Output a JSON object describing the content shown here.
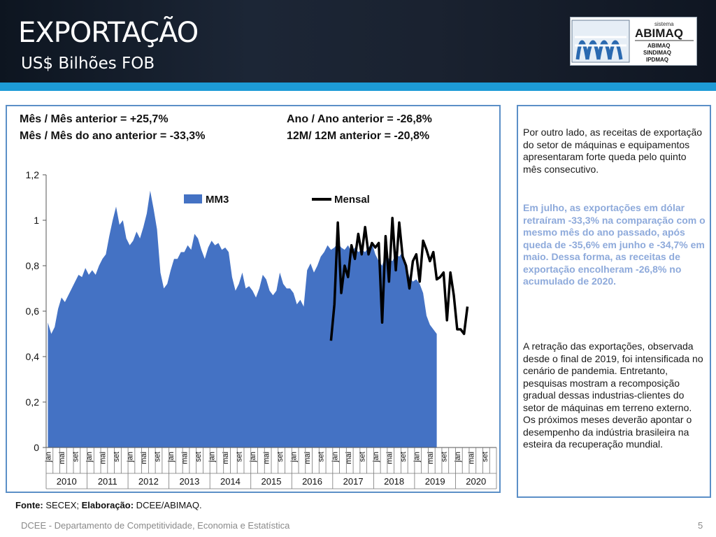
{
  "header": {
    "title": "EXPORTAÇÃO",
    "subtitle": "US$ Bilhões FOB"
  },
  "logo": {
    "top_text": "sistema",
    "brand": "ABIMAQ",
    "lines": [
      "ABIMAQ",
      "SINDIMAQ",
      "IPDMAQ"
    ]
  },
  "stats": {
    "mom": "Mês / Mês anterior = +25,7%",
    "yoy_month": "Mês / Mês do ano anterior = -33,3%",
    "ytd": "Ano / Ano anterior = -26,8%",
    "r12": "12M/ 12M anterior = -20,8%"
  },
  "text_panel": {
    "p1": "Por outro lado, as receitas de exportação do setor de máquinas e equipamentos apresentaram forte queda pelo quinto mês consecutivo.",
    "p2": "Em julho, as exportações em dólar retraíram -33,3% na comparação com o mesmo mês do ano passado, após queda de  -35,6% em junho e -34,7% em maio. Dessa forma, as receitas de exportação encolheram -26,8% no acumulado de 2020.",
    "p3": "A retração das exportações, observada desde o final de 2019, foi intensificada no cenário de pandemia. Entretanto, pesquisas mostram a recomposição gradual dessas industrias-clientes do setor de máquinas em terreno externo. Os próximos meses deverão apontar o desempenho da indústria brasileira na esteira da recuperação mundial."
  },
  "fonte": "Fonte: SECEX; Elaboração: DCEE/ABIMAQ.",
  "footer": "DCEE - Departamento de Competitividade, Economia e Estatística",
  "page_number": "5",
  "colors": {
    "area": "#4472c4",
    "line": "#000000",
    "accent": "#1d9bd6",
    "panel_border": "#5b8fc7",
    "highlight_text": "#8eaadb"
  },
  "chart_data": {
    "type": "area",
    "ylim": [
      0,
      1.2
    ],
    "yticks": [
      "0",
      "0,2",
      "0,4",
      "0,6",
      "0,8",
      "1",
      "1,2"
    ],
    "month_labels": [
      "jan",
      "mai",
      "set"
    ],
    "years": [
      "2010",
      "2011",
      "2012",
      "2013",
      "2014",
      "2015",
      "2016",
      "2017",
      "2018",
      "2019",
      "2020"
    ],
    "series": [
      {
        "name": "MM3",
        "type": "area",
        "start": "2010-01",
        "values": [
          0.55,
          0.5,
          0.53,
          0.61,
          0.66,
          0.64,
          0.67,
          0.7,
          0.73,
          0.76,
          0.75,
          0.79,
          0.76,
          0.78,
          0.76,
          0.8,
          0.83,
          0.85,
          0.93,
          1.0,
          1.06,
          0.98,
          1.0,
          0.92,
          0.89,
          0.91,
          0.95,
          0.92,
          0.97,
          1.03,
          1.13,
          1.05,
          0.96,
          0.77,
          0.7,
          0.72,
          0.78,
          0.83,
          0.83,
          0.86,
          0.86,
          0.89,
          0.87,
          0.94,
          0.92,
          0.87,
          0.83,
          0.88,
          0.91,
          0.89,
          0.9,
          0.87,
          0.88,
          0.86,
          0.75,
          0.69,
          0.72,
          0.77,
          0.7,
          0.71,
          0.69,
          0.66,
          0.7,
          0.76,
          0.74,
          0.69,
          0.67,
          0.69,
          0.77,
          0.72,
          0.7,
          0.7,
          0.68,
          0.63,
          0.65,
          0.62,
          0.78,
          0.81,
          0.77,
          0.8,
          0.84,
          0.86,
          0.89,
          0.87,
          0.88,
          0.9,
          0.88,
          0.87,
          0.89,
          0.86,
          0.88,
          0.86,
          0.87,
          0.86,
          0.88,
          0.9,
          0.85,
          0.82,
          0.8,
          0.85,
          0.83,
          0.82,
          0.85,
          0.84,
          0.86,
          0.8,
          0.75,
          0.73,
          0.74,
          0.72,
          0.68,
          0.58,
          0.54,
          0.52,
          0.5
        ]
      },
      {
        "name": "Mensal",
        "type": "line",
        "start": "2016-12",
        "values": [
          0.47,
          0.63,
          0.99,
          0.68,
          0.8,
          0.75,
          0.89,
          0.83,
          0.94,
          0.85,
          0.97,
          0.85,
          0.9,
          0.88,
          0.9,
          0.55,
          0.93,
          0.73,
          1.01,
          0.78,
          0.99,
          0.84,
          0.8,
          0.7,
          0.82,
          0.85,
          0.73,
          0.91,
          0.87,
          0.82,
          0.86,
          0.74,
          0.75,
          0.77,
          0.56,
          0.77,
          0.67,
          0.52,
          0.52,
          0.5,
          0.62
        ]
      }
    ]
  }
}
